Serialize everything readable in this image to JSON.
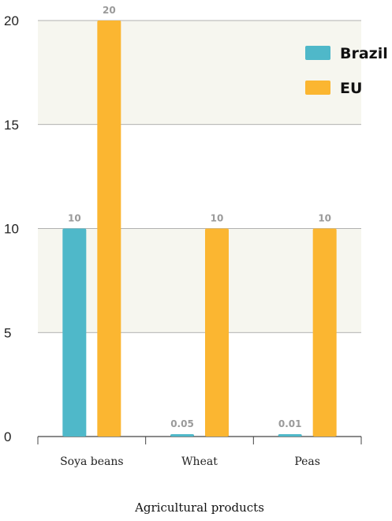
{
  "chart_data": {
    "type": "bar",
    "categories": [
      "Soya beans",
      "Wheat",
      "Peas"
    ],
    "series": [
      {
        "name": "Brazil",
        "values": [
          10,
          0.05,
          0.01
        ],
        "data_labels": [
          "10",
          "0.05",
          "0.01"
        ],
        "color": "#4fb8c9"
      },
      {
        "name": "EU",
        "values": [
          20,
          10,
          10
        ],
        "data_labels": [
          "20",
          "10",
          "10"
        ],
        "color": "#fbb631"
      }
    ],
    "title": "",
    "xlabel": "Agricultural products",
    "ylabel": "",
    "ylim": [
      0,
      20
    ],
    "yticks": [
      "0",
      "5",
      "10",
      "15",
      "20"
    ],
    "grid": true,
    "legend_position": "top-right",
    "band_color": "#f6f6ef"
  }
}
